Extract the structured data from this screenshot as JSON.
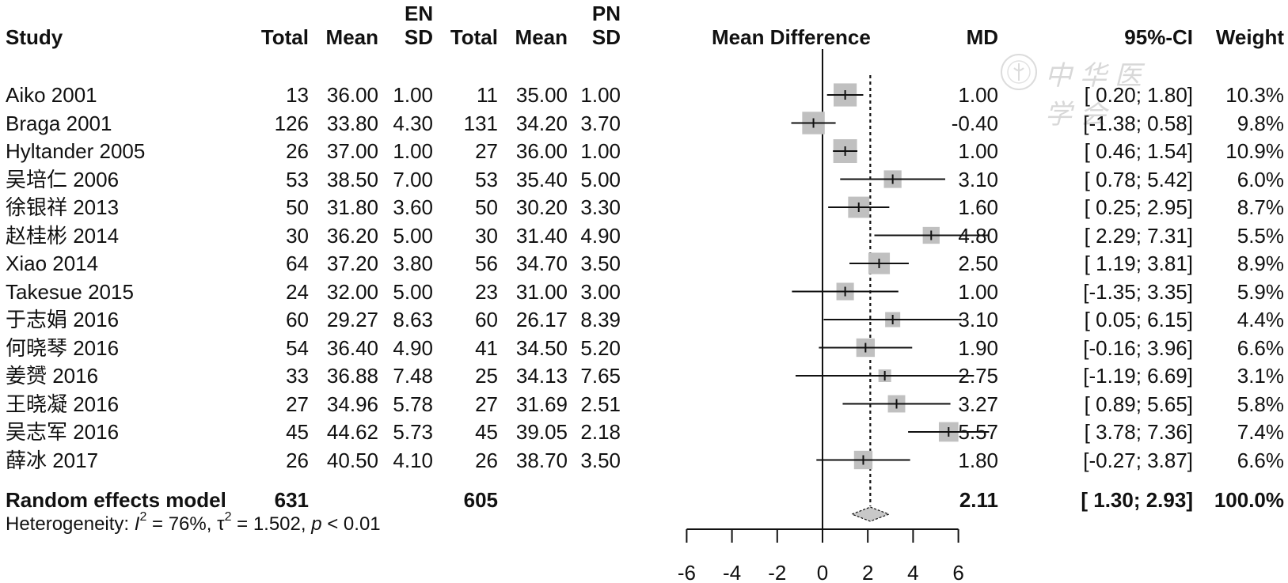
{
  "chart_data": {
    "type": "forest",
    "title": "",
    "group_labels": {
      "experimental": "EN",
      "control": "PN"
    },
    "columns": {
      "study": "Study",
      "exp_total": "Total",
      "exp_mean": "Mean",
      "exp_sd": "SD",
      "ctl_total": "Total",
      "ctl_mean": "Mean",
      "ctl_sd": "SD",
      "plot": "Mean Difference",
      "md": "MD",
      "ci": "95%-CI",
      "weight": "Weight"
    },
    "studies": [
      {
        "study": "Aiko 2001",
        "exp_total": "13",
        "exp_mean": "36.00",
        "exp_sd": "1.00",
        "ctl_total": "11",
        "ctl_mean": "35.00",
        "ctl_sd": "1.00",
        "md": 1.0,
        "lower": 0.2,
        "upper": 1.8,
        "md_text": "1.00",
        "ci_text": "[ 0.20; 1.80]",
        "weight_text": "10.3%",
        "weight": 10.3
      },
      {
        "study": "Braga 2001",
        "exp_total": "126",
        "exp_mean": "33.80",
        "exp_sd": "4.30",
        "ctl_total": "131",
        "ctl_mean": "34.20",
        "ctl_sd": "3.70",
        "md": -0.4,
        "lower": -1.38,
        "upper": 0.58,
        "md_text": "-0.40",
        "ci_text": "[-1.38; 0.58]",
        "weight_text": "9.8%",
        "weight": 9.8
      },
      {
        "study": "Hyltander 2005",
        "exp_total": "26",
        "exp_mean": "37.00",
        "exp_sd": "1.00",
        "ctl_total": "27",
        "ctl_mean": "36.00",
        "ctl_sd": "1.00",
        "md": 1.0,
        "lower": 0.46,
        "upper": 1.54,
        "md_text": "1.00",
        "ci_text": "[ 0.46; 1.54]",
        "weight_text": "10.9%",
        "weight": 10.9
      },
      {
        "study": "吴培仁 2006",
        "exp_total": "53",
        "exp_mean": "38.50",
        "exp_sd": "7.00",
        "ctl_total": "53",
        "ctl_mean": "35.40",
        "ctl_sd": "5.00",
        "md": 3.1,
        "lower": 0.78,
        "upper": 5.42,
        "md_text": "3.10",
        "ci_text": "[ 0.78; 5.42]",
        "weight_text": "6.0%",
        "weight": 6.0
      },
      {
        "study": "徐银祥 2013",
        "exp_total": "50",
        "exp_mean": "31.80",
        "exp_sd": "3.60",
        "ctl_total": "50",
        "ctl_mean": "30.20",
        "ctl_sd": "3.30",
        "md": 1.6,
        "lower": 0.25,
        "upper": 2.95,
        "md_text": "1.60",
        "ci_text": "[ 0.25; 2.95]",
        "weight_text": "8.7%",
        "weight": 8.7
      },
      {
        "study": "赵桂彬 2014",
        "exp_total": "30",
        "exp_mean": "36.20",
        "exp_sd": "5.00",
        "ctl_total": "30",
        "ctl_mean": "31.40",
        "ctl_sd": "4.90",
        "md": 4.8,
        "lower": 2.29,
        "upper": 7.31,
        "md_text": "4.80",
        "ci_text": "[ 2.29; 7.31]",
        "weight_text": "5.5%",
        "weight": 5.5
      },
      {
        "study": "Xiao 2014",
        "exp_total": "64",
        "exp_mean": "37.20",
        "exp_sd": "3.80",
        "ctl_total": "56",
        "ctl_mean": "34.70",
        "ctl_sd": "3.50",
        "md": 2.5,
        "lower": 1.19,
        "upper": 3.81,
        "md_text": "2.50",
        "ci_text": "[ 1.19; 3.81]",
        "weight_text": "8.9%",
        "weight": 8.9
      },
      {
        "study": "Takesue 2015",
        "exp_total": "24",
        "exp_mean": "32.00",
        "exp_sd": "5.00",
        "ctl_total": "23",
        "ctl_mean": "31.00",
        "ctl_sd": "3.00",
        "md": 1.0,
        "lower": -1.35,
        "upper": 3.35,
        "md_text": "1.00",
        "ci_text": "[-1.35; 3.35]",
        "weight_text": "5.9%",
        "weight": 5.9
      },
      {
        "study": "于志娟 2016",
        "exp_total": "60",
        "exp_mean": "29.27",
        "exp_sd": "8.63",
        "ctl_total": "60",
        "ctl_mean": "26.17",
        "ctl_sd": "8.39",
        "md": 3.1,
        "lower": 0.05,
        "upper": 6.15,
        "md_text": "3.10",
        "ci_text": "[ 0.05; 6.15]",
        "weight_text": "4.4%",
        "weight": 4.4
      },
      {
        "study": "何晓琴 2016",
        "exp_total": "54",
        "exp_mean": "36.40",
        "exp_sd": "4.90",
        "ctl_total": "41",
        "ctl_mean": "34.50",
        "ctl_sd": "5.20",
        "md": 1.9,
        "lower": -0.16,
        "upper": 3.96,
        "md_text": "1.90",
        "ci_text": "[-0.16; 3.96]",
        "weight_text": "6.6%",
        "weight": 6.6
      },
      {
        "study": "姜赟 2016",
        "exp_total": "33",
        "exp_mean": "36.88",
        "exp_sd": "7.48",
        "ctl_total": "25",
        "ctl_mean": "34.13",
        "ctl_sd": "7.65",
        "md": 2.75,
        "lower": -1.19,
        "upper": 6.69,
        "md_text": "2.75",
        "ci_text": "[-1.19; 6.69]",
        "weight_text": "3.1%",
        "weight": 3.1
      },
      {
        "study": "王晓凝 2016",
        "exp_total": "27",
        "exp_mean": "34.96",
        "exp_sd": "5.78",
        "ctl_total": "27",
        "ctl_mean": "31.69",
        "ctl_sd": "2.51",
        "md": 3.27,
        "lower": 0.89,
        "upper": 5.65,
        "md_text": "3.27",
        "ci_text": "[ 0.89; 5.65]",
        "weight_text": "5.8%",
        "weight": 5.8
      },
      {
        "study": "吴志军 2016",
        "exp_total": "45",
        "exp_mean": "44.62",
        "exp_sd": "5.73",
        "ctl_total": "45",
        "ctl_mean": "39.05",
        "ctl_sd": "2.18",
        "md": 5.57,
        "lower": 3.78,
        "upper": 7.36,
        "md_text": "5.57",
        "ci_text": "[ 3.78; 7.36]",
        "weight_text": "7.4%",
        "weight": 7.4
      },
      {
        "study": "薛冰 2017",
        "exp_total": "26",
        "exp_mean": "40.50",
        "exp_sd": "4.10",
        "ctl_total": "26",
        "ctl_mean": "38.70",
        "ctl_sd": "3.50",
        "md": 1.8,
        "lower": -0.27,
        "upper": 3.87,
        "md_text": "1.80",
        "ci_text": "[-0.27; 3.87]",
        "weight_text": "6.6%",
        "weight": 6.6
      }
    ],
    "pooled": {
      "label": "Random effects model",
      "exp_total": "631",
      "ctl_total": "605",
      "md": 2.11,
      "lower": 1.3,
      "upper": 2.93,
      "md_text": "2.11",
      "ci_text": "[ 1.30; 2.93]",
      "weight_text": "100.0%"
    },
    "heterogeneity": {
      "prefix": "Heterogeneity: ",
      "i2_symbol": "I",
      "i2_value": " = 76%, ",
      "tau2_symbol": "τ",
      "tau2_value": " = 1.502, ",
      "p_symbol": "p",
      "p_value": " < 0.01"
    },
    "x_axis": {
      "range": [
        -6,
        6
      ],
      "ticks": [
        -6,
        -4,
        -2,
        0,
        2,
        4,
        6
      ],
      "tick_labels": [
        "-6",
        "-4",
        "-2",
        "0",
        "2",
        "4",
        "6"
      ],
      "reference_line": 0,
      "pooled_line": 2.11
    },
    "colors": {
      "box": "#c0c0c0",
      "diamond": "#c8c8c8",
      "line": "#111111"
    }
  },
  "watermark": {
    "text": "中华医学会"
  }
}
